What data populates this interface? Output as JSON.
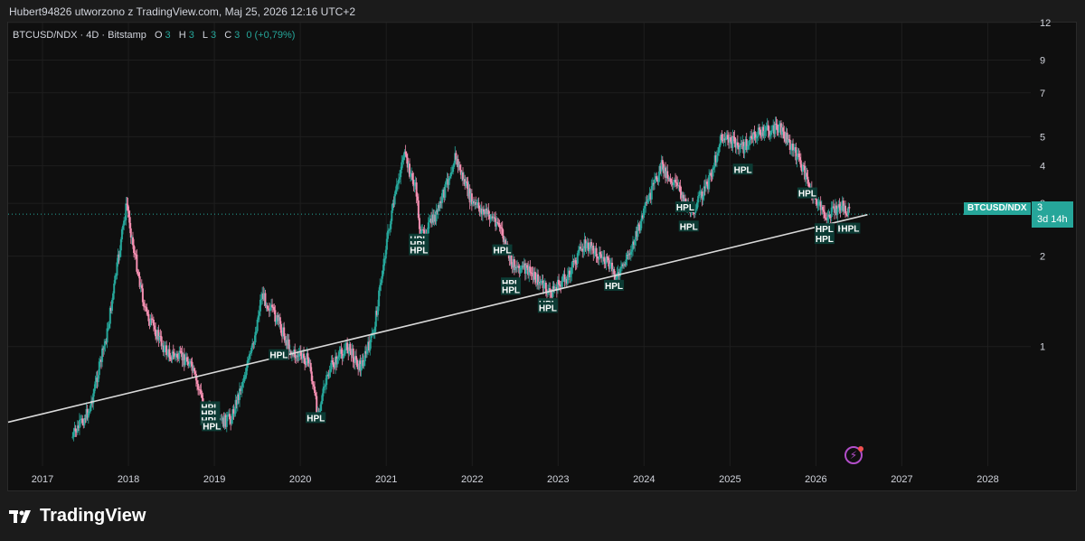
{
  "header": {
    "caption": "Hubert94826 utworzono z TradingView.com, Maj 25, 2026 12:16 UTC+2"
  },
  "legend": {
    "symbol": "BTCUSD/NDX · 4D · Bitstamp",
    "o_label": "O",
    "o_value": "3",
    "h_label": "H",
    "h_value": "3",
    "l_label": "L",
    "l_value": "3",
    "c_label": "C",
    "c_value": "3",
    "change": "0 (+0,79%)"
  },
  "price_tag": {
    "symbol": "BTCUSD/NDX",
    "value": "3",
    "countdown": "3d 14h"
  },
  "brand": {
    "name": "TradingView"
  },
  "colors": {
    "up": "#26a69a",
    "down": "#f48fb1",
    "trendline": "#d9d9d9",
    "grid": "#1e1e1e",
    "axis_text": "#d1d4dc",
    "label_bg": "#0c3b34"
  },
  "chart_data": {
    "type": "candlestick",
    "y_scale": "log",
    "ylim": [
      0.4,
      12
    ],
    "xlim": [
      2016.6,
      2028.5
    ],
    "y_ticks": [
      {
        "value": 12,
        "label": "12"
      },
      {
        "value": 9,
        "label": "9"
      },
      {
        "value": 7,
        "label": "7"
      },
      {
        "value": 5,
        "label": "5"
      },
      {
        "value": 4,
        "label": "4"
      },
      {
        "value": 3,
        "label": "3"
      },
      {
        "value": 2,
        "label": "2"
      },
      {
        "value": 1,
        "label": "1"
      }
    ],
    "x_ticks": [
      {
        "value": 2017,
        "label": "2017"
      },
      {
        "value": 2018,
        "label": "2018"
      },
      {
        "value": 2019,
        "label": "2019"
      },
      {
        "value": 2020,
        "label": "2020"
      },
      {
        "value": 2021,
        "label": "2021"
      },
      {
        "value": 2022,
        "label": "2022"
      },
      {
        "value": 2023,
        "label": "2023"
      },
      {
        "value": 2024,
        "label": "2024"
      },
      {
        "value": 2025,
        "label": "2025"
      },
      {
        "value": 2026,
        "label": "2026"
      },
      {
        "value": 2027,
        "label": "2027"
      },
      {
        "value": 2028,
        "label": "2028"
      }
    ],
    "price_path": [
      [
        2017.35,
        0.5
      ],
      [
        2017.55,
        0.62
      ],
      [
        2017.75,
        1.1
      ],
      [
        2017.98,
        3.0
      ],
      [
        2018.05,
        2.2
      ],
      [
        2018.2,
        1.3
      ],
      [
        2018.45,
        0.95
      ],
      [
        2018.7,
        0.9
      ],
      [
        2018.9,
        0.62
      ],
      [
        2019.05,
        0.55
      ],
      [
        2019.2,
        0.58
      ],
      [
        2019.45,
        1.0
      ],
      [
        2019.55,
        1.5
      ],
      [
        2019.75,
        1.2
      ],
      [
        2019.9,
        0.95
      ],
      [
        2020.1,
        0.9
      ],
      [
        2020.2,
        0.6
      ],
      [
        2020.35,
        0.85
      ],
      [
        2020.55,
        1.0
      ],
      [
        2020.7,
        0.85
      ],
      [
        2020.85,
        1.1
      ],
      [
        2021.0,
        2.2
      ],
      [
        2021.2,
        4.4
      ],
      [
        2021.35,
        3.3
      ],
      [
        2021.4,
        2.3
      ],
      [
        2021.6,
        2.8
      ],
      [
        2021.8,
        4.3
      ],
      [
        2022.0,
        3.0
      ],
      [
        2022.3,
        2.6
      ],
      [
        2022.45,
        1.9
      ],
      [
        2022.7,
        1.75
      ],
      [
        2022.9,
        1.5
      ],
      [
        2023.1,
        1.7
      ],
      [
        2023.3,
        2.2
      ],
      [
        2023.5,
        2.0
      ],
      [
        2023.7,
        1.7
      ],
      [
        2023.9,
        2.3
      ],
      [
        2024.0,
        2.8
      ],
      [
        2024.2,
        4.0
      ],
      [
        2024.45,
        3.2
      ],
      [
        2024.55,
        2.8
      ],
      [
        2024.75,
        3.5
      ],
      [
        2024.9,
        5.0
      ],
      [
        2025.15,
        4.6
      ],
      [
        2025.35,
        5.2
      ],
      [
        2025.6,
        5.3
      ],
      [
        2025.8,
        4.2
      ],
      [
        2025.95,
        3.3
      ],
      [
        2026.1,
        2.7
      ],
      [
        2026.3,
        2.95
      ],
      [
        2026.4,
        2.75
      ]
    ],
    "trendline": {
      "from": [
        2016.6,
        0.56
      ],
      "to": [
        2026.6,
        2.75
      ]
    },
    "last_price": 2.76,
    "annotations": [
      {
        "x": 2018.95,
        "y": 0.63,
        "text": "HPL"
      },
      {
        "x": 2018.95,
        "y": 0.6,
        "text": "HPL"
      },
      {
        "x": 2018.95,
        "y": 0.57,
        "text": "HPL"
      },
      {
        "x": 2018.97,
        "y": 0.545,
        "text": "HPL"
      },
      {
        "x": 2019.75,
        "y": 0.94,
        "text": "HPL"
      },
      {
        "x": 2020.18,
        "y": 0.58,
        "text": "HPL"
      },
      {
        "x": 2021.38,
        "y": 2.28,
        "text": "HPL"
      },
      {
        "x": 2021.38,
        "y": 2.2,
        "text": "HPL"
      },
      {
        "x": 2021.38,
        "y": 2.1,
        "text": "HPL"
      },
      {
        "x": 2022.35,
        "y": 2.1,
        "text": "HPL"
      },
      {
        "x": 2022.45,
        "y": 1.63,
        "text": "HPL"
      },
      {
        "x": 2022.45,
        "y": 1.55,
        "text": "HPL"
      },
      {
        "x": 2022.88,
        "y": 1.39,
        "text": "HPL"
      },
      {
        "x": 2022.88,
        "y": 1.35,
        "text": "HPL"
      },
      {
        "x": 2023.65,
        "y": 1.6,
        "text": "HPL"
      },
      {
        "x": 2024.48,
        "y": 2.92,
        "text": "HPL"
      },
      {
        "x": 2024.52,
        "y": 2.52,
        "text": "HPL"
      },
      {
        "x": 2025.15,
        "y": 3.9,
        "text": "HPL"
      },
      {
        "x": 2025.9,
        "y": 3.25,
        "text": "HPL"
      },
      {
        "x": 2026.1,
        "y": 2.47,
        "text": "HPL"
      },
      {
        "x": 2026.1,
        "y": 2.29,
        "text": "HPL"
      },
      {
        "x": 2026.36,
        "y": 2.48,
        "text": "HPL"
      },
      {
        "x": 2026.4,
        "y": 2.48,
        "text": "HPL"
      }
    ]
  }
}
